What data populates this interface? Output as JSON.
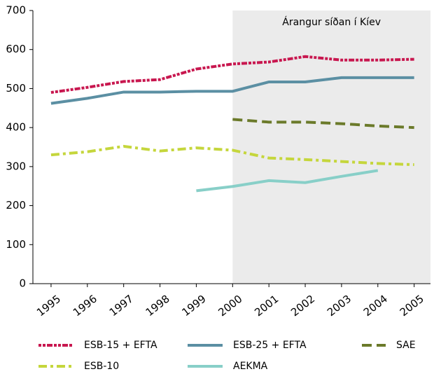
{
  "chart_data": {
    "type": "line",
    "annotation": "Árangur síðan í Kíev",
    "shaded_from": 2000,
    "shade_color": "#ebebeb",
    "x": [
      1995,
      1996,
      1997,
      1998,
      1999,
      2000,
      2001,
      2002,
      2003,
      2004,
      2005
    ],
    "xlim": [
      1994.5,
      2005.45
    ],
    "xticks": [
      1995,
      1996,
      1997,
      1998,
      1999,
      2000,
      2001,
      2002,
      2003,
      2004,
      2005
    ],
    "ylim": [
      0,
      700
    ],
    "yticks": [
      0,
      100,
      200,
      300,
      400,
      500,
      600,
      700
    ],
    "series": [
      {
        "name": "ESB-15 + EFTA",
        "color": "#c8174f",
        "style": "dotdash",
        "values": [
          490,
          503,
          518,
          523,
          550,
          563,
          568,
          582,
          573,
          573,
          575
        ]
      },
      {
        "name": "ESB-25 + EFTA",
        "color": "#5b8fa3",
        "style": "solid",
        "values": [
          462,
          475,
          491,
          491,
          493,
          493,
          517,
          517,
          528,
          528,
          528
        ]
      },
      {
        "name": "SAE",
        "color": "#6b7a2a",
        "style": "dash",
        "values": [
          null,
          null,
          null,
          null,
          null,
          421,
          414,
          414,
          410,
          404,
          400
        ]
      },
      {
        "name": "ESB-10",
        "color": "#c5d63c",
        "style": "dashdot",
        "values": [
          330,
          338,
          352,
          340,
          348,
          342,
          322,
          318,
          313,
          308,
          305
        ]
      },
      {
        "name": "AEKMA",
        "color": "#88cfc8",
        "style": "solid",
        "values": [
          null,
          null,
          null,
          null,
          238,
          249,
          264,
          259,
          275,
          290,
          null
        ]
      }
    ]
  }
}
